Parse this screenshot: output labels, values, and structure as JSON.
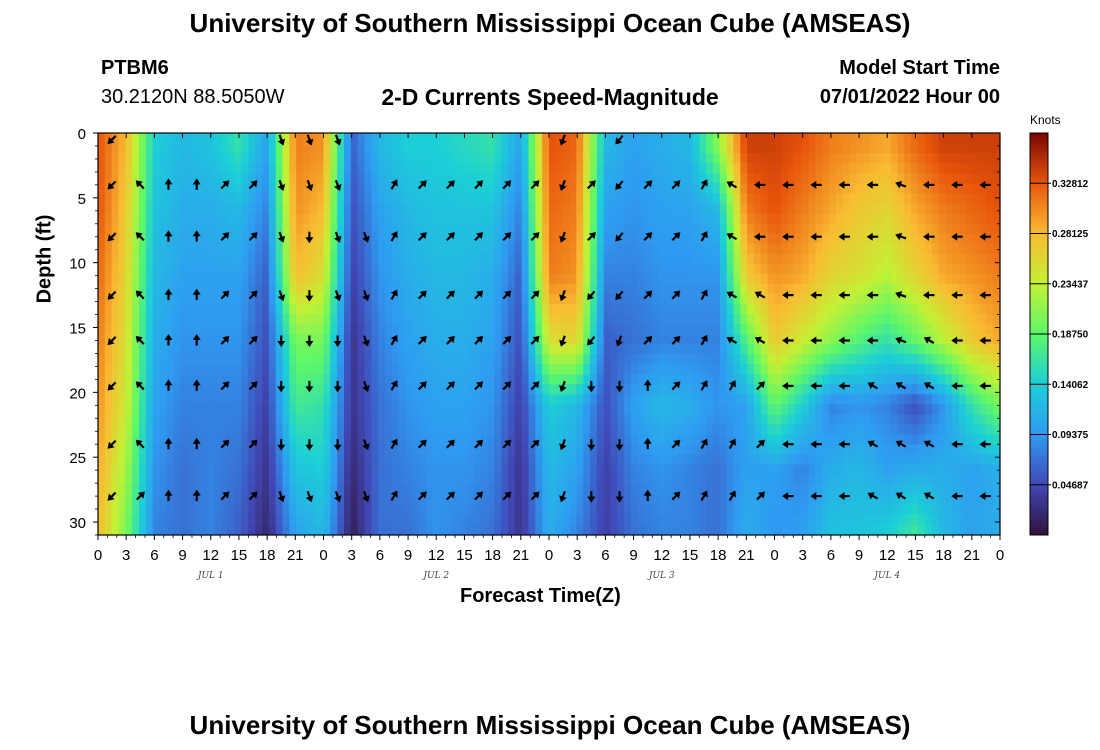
{
  "header": {
    "title": "University of Southern Mississippi Ocean Cube (AMSEAS)",
    "station": "PTBM6",
    "coords": "30.2120N  88.5050W",
    "subtitle": "2-D Currents Speed-Magnitude",
    "model_start_label": "Model Start Time",
    "model_start_value": "07/01/2022 Hour 00"
  },
  "footer": {
    "title": "University of Southern Mississippi Ocean Cube (AMSEAS)"
  },
  "chart_data": {
    "type": "heatmap",
    "title": "2-D Currents Speed-Magnitude",
    "xlabel": "Forecast Time(Z)",
    "ylabel": "Depth (ft)",
    "xlim": [
      0,
      96
    ],
    "ylim": [
      31,
      0
    ],
    "x_ticks": [
      0,
      3,
      6,
      9,
      12,
      15,
      18,
      21,
      24,
      27,
      30,
      33,
      36,
      39,
      42,
      45,
      48,
      51,
      54,
      57,
      60,
      63,
      66,
      69,
      72,
      75,
      78,
      81,
      84,
      87,
      90,
      93,
      96
    ],
    "x_tick_labels": [
      "0",
      "3",
      "6",
      "9",
      "12",
      "15",
      "18",
      "21",
      "0",
      "3",
      "6",
      "9",
      "12",
      "15",
      "18",
      "21",
      "0",
      "3",
      "6",
      "9",
      "12",
      "15",
      "18",
      "21",
      "0",
      "3",
      "6",
      "9",
      "12",
      "15",
      "18",
      "21",
      "0"
    ],
    "y_ticks": [
      0,
      5,
      10,
      15,
      20,
      25,
      30
    ],
    "y_tick_labels": [
      "0",
      "5",
      "10",
      "15",
      "20",
      "25",
      "30"
    ],
    "day_labels": [
      {
        "label": "JUL 1",
        "x": 12
      },
      {
        "label": "JUL 2",
        "x": 36
      },
      {
        "label": "JUL 3",
        "x": 60
      },
      {
        "label": "JUL 4",
        "x": 84
      }
    ],
    "colorbar": {
      "title": "Knots",
      "min": 0.0,
      "max": 0.375,
      "tick_values": [
        0.046875,
        0.09375,
        0.140625,
        0.1875,
        0.234375,
        0.28125,
        0.328125
      ],
      "tick_labels": [
        "0.04687",
        "0.09375",
        "0.14062",
        "0.18750",
        "0.23437",
        "0.28125",
        "0.32812"
      ]
    },
    "speed_columns": [
      {
        "t": 0,
        "s": [
          0.33,
          0.33,
          0.32,
          0.31,
          0.3,
          0.29,
          0.28
        ]
      },
      {
        "t": 3,
        "s": [
          0.28,
          0.27,
          0.26,
          0.25,
          0.24,
          0.22,
          0.2
        ]
      },
      {
        "t": 6,
        "s": [
          0.14,
          0.13,
          0.12,
          0.11,
          0.1,
          0.09,
          0.08
        ]
      },
      {
        "t": 9,
        "s": [
          0.12,
          0.11,
          0.1,
          0.09,
          0.08,
          0.07,
          0.07
        ]
      },
      {
        "t": 12,
        "s": [
          0.13,
          0.11,
          0.1,
          0.09,
          0.08,
          0.08,
          0.08
        ]
      },
      {
        "t": 15,
        "s": [
          0.16,
          0.12,
          0.1,
          0.09,
          0.08,
          0.07,
          0.06
        ]
      },
      {
        "t": 18,
        "s": [
          0.1,
          0.08,
          0.06,
          0.05,
          0.04,
          0.03,
          0.02
        ]
      },
      {
        "t": 21,
        "s": [
          0.31,
          0.3,
          0.28,
          0.2,
          0.17,
          0.13,
          0.1
        ]
      },
      {
        "t": 24,
        "s": [
          0.3,
          0.28,
          0.25,
          0.2,
          0.16,
          0.14,
          0.12
        ]
      },
      {
        "t": 27,
        "s": [
          0.06,
          0.05,
          0.04,
          0.03,
          0.03,
          0.02,
          0.01
        ]
      },
      {
        "t": 30,
        "s": [
          0.12,
          0.1,
          0.09,
          0.08,
          0.07,
          0.07,
          0.07
        ]
      },
      {
        "t": 33,
        "s": [
          0.14,
          0.12,
          0.11,
          0.1,
          0.09,
          0.08,
          0.07
        ]
      },
      {
        "t": 36,
        "s": [
          0.14,
          0.13,
          0.12,
          0.11,
          0.1,
          0.09,
          0.09
        ]
      },
      {
        "t": 39,
        "s": [
          0.15,
          0.13,
          0.12,
          0.11,
          0.1,
          0.09,
          0.08
        ]
      },
      {
        "t": 42,
        "s": [
          0.16,
          0.13,
          0.11,
          0.1,
          0.09,
          0.08,
          0.07
        ]
      },
      {
        "t": 45,
        "s": [
          0.1,
          0.08,
          0.06,
          0.05,
          0.04,
          0.03,
          0.03
        ]
      },
      {
        "t": 48,
        "s": [
          0.33,
          0.32,
          0.31,
          0.25,
          0.14,
          0.12,
          0.11
        ]
      },
      {
        "t": 51,
        "s": [
          0.32,
          0.31,
          0.3,
          0.26,
          0.12,
          0.1,
          0.08
        ]
      },
      {
        "t": 54,
        "s": [
          0.12,
          0.1,
          0.08,
          0.06,
          0.05,
          0.04,
          0.04
        ]
      },
      {
        "t": 57,
        "s": [
          0.1,
          0.09,
          0.08,
          0.07,
          0.1,
          0.08,
          0.07
        ]
      },
      {
        "t": 60,
        "s": [
          0.11,
          0.1,
          0.09,
          0.08,
          0.12,
          0.09,
          0.08
        ]
      },
      {
        "t": 63,
        "s": [
          0.12,
          0.1,
          0.09,
          0.08,
          0.11,
          0.08,
          0.08
        ]
      },
      {
        "t": 66,
        "s": [
          0.21,
          0.12,
          0.09,
          0.08,
          0.09,
          0.07,
          0.07
        ]
      },
      {
        "t": 69,
        "s": [
          0.34,
          0.31,
          0.27,
          0.18,
          0.1,
          0.1,
          0.11
        ]
      },
      {
        "t": 72,
        "s": [
          0.34,
          0.33,
          0.3,
          0.27,
          0.19,
          0.1,
          0.09
        ]
      },
      {
        "t": 75,
        "s": [
          0.33,
          0.31,
          0.29,
          0.24,
          0.14,
          0.08,
          0.1
        ]
      },
      {
        "t": 78,
        "s": [
          0.31,
          0.29,
          0.26,
          0.21,
          0.08,
          0.11,
          0.13
        ]
      },
      {
        "t": 81,
        "s": [
          0.3,
          0.27,
          0.25,
          0.18,
          0.09,
          0.12,
          0.13
        ]
      },
      {
        "t": 84,
        "s": [
          0.29,
          0.26,
          0.23,
          0.16,
          0.08,
          0.1,
          0.14
        ]
      },
      {
        "t": 87,
        "s": [
          0.32,
          0.29,
          0.26,
          0.19,
          0.05,
          0.11,
          0.17
        ]
      },
      {
        "t": 90,
        "s": [
          0.34,
          0.31,
          0.29,
          0.23,
          0.09,
          0.11,
          0.12
        ]
      },
      {
        "t": 93,
        "s": [
          0.34,
          0.32,
          0.3,
          0.27,
          0.16,
          0.1,
          0.1
        ]
      },
      {
        "t": 96,
        "s": [
          0.34,
          0.33,
          0.31,
          0.29,
          0.2,
          0.11,
          0.11
        ]
      }
    ],
    "speed_depths_ft": [
      1,
      6,
      11,
      16,
      21,
      26,
      31
    ],
    "arrow_depths_ft": [
      0.5,
      4,
      8,
      12.5,
      16,
      19.5,
      24,
      28
    ],
    "arrow_times_h": [
      1.5,
      4.5,
      7.5,
      10.5,
      13.5,
      16.5,
      19.5,
      22.5,
      25.5,
      28.5,
      31.5,
      34.5,
      37.5,
      40.5,
      43.5,
      46.5,
      49.5,
      52.5,
      55.5,
      58.5,
      61.5,
      64.5,
      67.5,
      70.5,
      73.5,
      76.5,
      79.5,
      82.5,
      85.5,
      88.5,
      91.5,
      94.5
    ],
    "arrow_directions_deg": [
      [
        225,
        225,
        225,
        225,
        225,
        225,
        225,
        225
      ],
      [
        null,
        315,
        315,
        315,
        315,
        315,
        315,
        45
      ],
      [
        null,
        0,
        0,
        0,
        0,
        0,
        0,
        0
      ],
      [
        null,
        0,
        0,
        0,
        0,
        0,
        0,
        0
      ],
      [
        null,
        45,
        45,
        45,
        45,
        45,
        45,
        45
      ],
      [
        null,
        45,
        45,
        45,
        45,
        45,
        45,
        45
      ],
      [
        160,
        160,
        160,
        160,
        180,
        180,
        180,
        160
      ],
      [
        160,
        160,
        180,
        180,
        180,
        180,
        180,
        160
      ],
      [
        160,
        160,
        160,
        160,
        180,
        180,
        180,
        160
      ],
      [
        null,
        null,
        160,
        160,
        160,
        160,
        160,
        160
      ],
      [
        null,
        30,
        30,
        30,
        30,
        30,
        30,
        30
      ],
      [
        null,
        45,
        45,
        45,
        45,
        45,
        45,
        45
      ],
      [
        null,
        45,
        45,
        45,
        45,
        45,
        45,
        45
      ],
      [
        null,
        45,
        45,
        45,
        45,
        45,
        45,
        45
      ],
      [
        null,
        45,
        45,
        45,
        45,
        45,
        45,
        45
      ],
      [
        null,
        45,
        45,
        45,
        45,
        45,
        45,
        45
      ],
      [
        200,
        200,
        200,
        200,
        200,
        200,
        200,
        200
      ],
      [
        null,
        45,
        45,
        220,
        220,
        180,
        180,
        180
      ],
      [
        220,
        220,
        220,
        220,
        200,
        180,
        180,
        180
      ],
      [
        null,
        45,
        45,
        45,
        45,
        0,
        0,
        0
      ],
      [
        null,
        45,
        45,
        45,
        45,
        45,
        45,
        45
      ],
      [
        null,
        30,
        30,
        30,
        30,
        30,
        30,
        30
      ],
      [
        null,
        300,
        300,
        300,
        300,
        30,
        30,
        30
      ],
      [
        null,
        270,
        270,
        300,
        300,
        45,
        45,
        45
      ],
      [
        null,
        270,
        270,
        270,
        270,
        270,
        270,
        270
      ],
      [
        null,
        270,
        270,
        270,
        270,
        270,
        270,
        270
      ],
      [
        null,
        270,
        270,
        270,
        270,
        270,
        270,
        270
      ],
      [
        null,
        270,
        270,
        270,
        270,
        300,
        300,
        300
      ],
      [
        null,
        290,
        290,
        290,
        290,
        300,
        300,
        300
      ],
      [
        null,
        270,
        270,
        270,
        300,
        300,
        300,
        300
      ],
      [
        null,
        270,
        270,
        270,
        270,
        270,
        270,
        270
      ],
      [
        null,
        270,
        270,
        270,
        270,
        270,
        270,
        270
      ]
    ]
  }
}
